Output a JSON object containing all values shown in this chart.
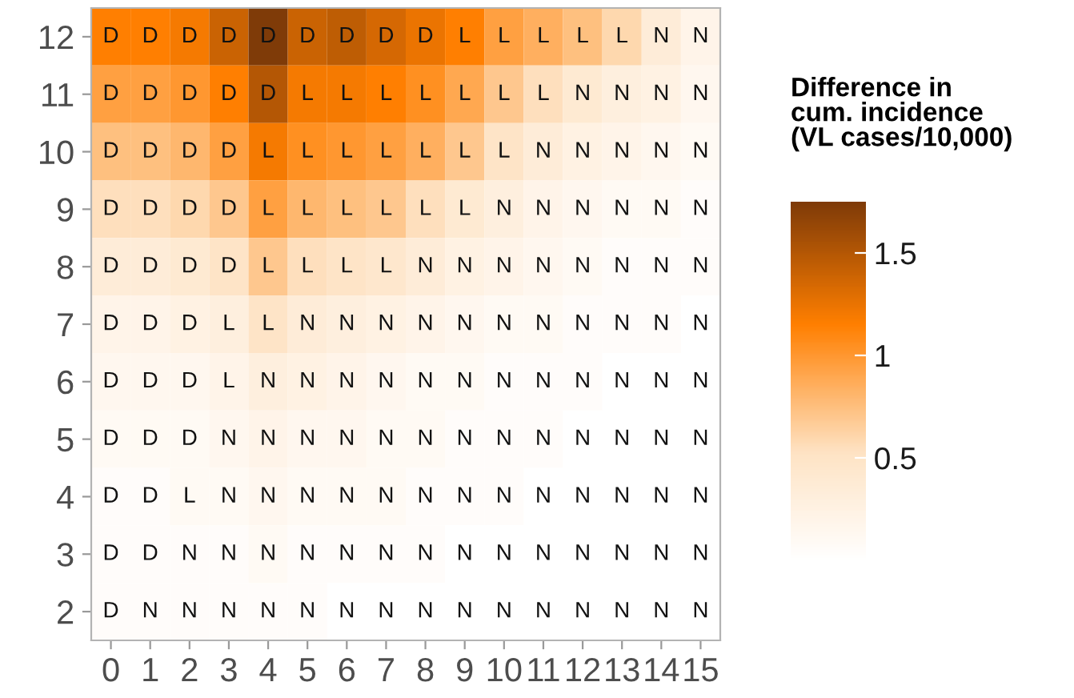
{
  "chart_data": {
    "type": "heatmap",
    "legend_title": "Difference in\ncum. incidence\n(VL cases/10,000)",
    "categories": [
      "0",
      "1",
      "2",
      "3",
      "4",
      "5",
      "6",
      "7",
      "8",
      "9",
      "10",
      "11",
      "12",
      "13",
      "14",
      "15"
    ],
    "y_categories": [
      "12",
      "11",
      "10",
      "9",
      "8",
      "7",
      "6",
      "5",
      "4",
      "3",
      "2"
    ],
    "cells": [
      [
        1.15,
        1.15,
        1.2,
        1.4,
        1.75,
        1.4,
        1.45,
        1.35,
        1.25,
        1.15,
        0.95,
        0.85,
        0.75,
        0.6,
        0.35,
        0.2
      ],
      [
        0.95,
        0.95,
        1.0,
        1.15,
        1.5,
        1.2,
        1.2,
        1.15,
        1.05,
        0.9,
        0.7,
        0.55,
        0.4,
        0.3,
        0.25,
        0.15
      ],
      [
        0.75,
        0.75,
        0.8,
        0.95,
        1.2,
        1.05,
        1.0,
        0.95,
        0.85,
        0.7,
        0.5,
        0.35,
        0.25,
        0.2,
        0.15,
        0.1
      ],
      [
        0.55,
        0.55,
        0.6,
        0.7,
        0.95,
        0.8,
        0.75,
        0.7,
        0.55,
        0.4,
        0.3,
        0.2,
        0.15,
        0.1,
        0.1,
        0.05
      ],
      [
        0.35,
        0.35,
        0.4,
        0.5,
        0.7,
        0.55,
        0.5,
        0.45,
        0.35,
        0.25,
        0.2,
        0.15,
        0.1,
        0.05,
        0.05,
        0.05
      ],
      [
        0.2,
        0.2,
        0.25,
        0.3,
        0.5,
        0.35,
        0.3,
        0.25,
        0.2,
        0.15,
        0.1,
        0.1,
        0.05,
        0.05,
        0.05,
        0.0
      ],
      [
        0.15,
        0.15,
        0.15,
        0.2,
        0.3,
        0.25,
        0.2,
        0.15,
        0.1,
        0.1,
        0.05,
        0.05,
        0.05,
        0.0,
        0.0,
        0.0
      ],
      [
        0.1,
        0.1,
        0.1,
        0.15,
        0.2,
        0.15,
        0.15,
        0.1,
        0.1,
        0.05,
        0.05,
        0.05,
        0.0,
        0.0,
        0.0,
        0.0
      ],
      [
        0.05,
        0.05,
        0.1,
        0.1,
        0.15,
        0.1,
        0.1,
        0.1,
        0.05,
        0.05,
        0.05,
        0.0,
        0.0,
        0.0,
        0.0,
        0.0
      ],
      [
        0.05,
        0.05,
        0.05,
        0.05,
        0.1,
        0.05,
        0.05,
        0.05,
        0.05,
        0.0,
        0.0,
        0.0,
        0.0,
        0.0,
        0.0,
        0.0
      ],
      [
        0.05,
        0.05,
        0.05,
        0.05,
        0.05,
        0.05,
        0.0,
        0.0,
        0.0,
        0.0,
        0.0,
        0.0,
        0.0,
        0.0,
        0.0,
        0.0
      ]
    ],
    "cell_labels": [
      [
        "D",
        "D",
        "D",
        "D",
        "D",
        "D",
        "D",
        "D",
        "D",
        "L",
        "L",
        "L",
        "L",
        "L",
        "N",
        "N"
      ],
      [
        "D",
        "D",
        "D",
        "D",
        "D",
        "L",
        "L",
        "L",
        "L",
        "L",
        "L",
        "L",
        "N",
        "N",
        "N",
        "N"
      ],
      [
        "D",
        "D",
        "D",
        "D",
        "L",
        "L",
        "L",
        "L",
        "L",
        "L",
        "L",
        "N",
        "N",
        "N",
        "N",
        "N"
      ],
      [
        "D",
        "D",
        "D",
        "D",
        "L",
        "L",
        "L",
        "L",
        "L",
        "L",
        "N",
        "N",
        "N",
        "N",
        "N",
        "N"
      ],
      [
        "D",
        "D",
        "D",
        "D",
        "L",
        "L",
        "L",
        "L",
        "N",
        "N",
        "N",
        "N",
        "N",
        "N",
        "N",
        "N"
      ],
      [
        "D",
        "D",
        "D",
        "L",
        "L",
        "N",
        "N",
        "N",
        "N",
        "N",
        "N",
        "N",
        "N",
        "N",
        "N",
        "N"
      ],
      [
        "D",
        "D",
        "D",
        "L",
        "N",
        "N",
        "N",
        "N",
        "N",
        "N",
        "N",
        "N",
        "N",
        "N",
        "N",
        "N"
      ],
      [
        "D",
        "D",
        "D",
        "N",
        "N",
        "N",
        "N",
        "N",
        "N",
        "N",
        "N",
        "N",
        "N",
        "N",
        "N",
        "N"
      ],
      [
        "D",
        "D",
        "L",
        "N",
        "N",
        "N",
        "N",
        "N",
        "N",
        "N",
        "N",
        "N",
        "N",
        "N",
        "N",
        "N"
      ],
      [
        "D",
        "D",
        "N",
        "N",
        "N",
        "N",
        "N",
        "N",
        "N",
        "N",
        "N",
        "N",
        "N",
        "N",
        "N",
        "N"
      ],
      [
        "D",
        "N",
        "N",
        "N",
        "N",
        "N",
        "N",
        "N",
        "N",
        "N",
        "N",
        "N",
        "N",
        "N",
        "N",
        "N"
      ]
    ],
    "clim": [
      0,
      1.75
    ],
    "cticks": [
      0.5,
      1,
      1.5
    ]
  }
}
